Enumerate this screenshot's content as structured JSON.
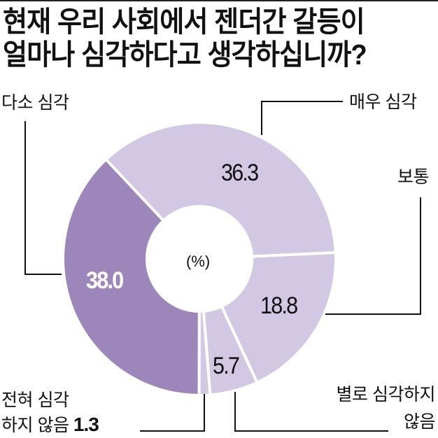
{
  "title": {
    "line1": "현재 우리 사회에서 젠더간 갈등이",
    "line2": "얼마나 심각하다고 생각하십니까?"
  },
  "colors": {
    "dark_segment": "#9d86b9",
    "light_segment": "#d3c8e4",
    "separator": "#ffffff",
    "rule": "#222222"
  },
  "labels": {
    "very_serious": "매우 심각",
    "normal": "보통",
    "somewhat_serious": "다소 심각",
    "not_very_serious_line1": "별로 심각하지",
    "not_very_serious_line2": "않음",
    "not_at_all_line1": "전혀 심각",
    "not_at_all_line2": "하지 않음",
    "not_at_all_value": "1.3",
    "unit": "(%)"
  },
  "values": {
    "very_serious": "36.3",
    "normal": "18.8",
    "not_very_serious": "5.7",
    "somewhat_serious": "38.0"
  },
  "chart_data": {
    "type": "pie",
    "subtype": "donut",
    "title": "현재 우리 사회에서 젠더간 갈등이 얼마나 심각하다고 생각하십니까?",
    "unit": "%",
    "categories": [
      "매우 심각",
      "보통",
      "별로 심각하지 않음",
      "전혀 심각하지 않음",
      "다소 심각"
    ],
    "values": [
      36.3,
      18.8,
      5.7,
      1.3,
      38.0
    ],
    "segment_colors": [
      "#d3c8e4",
      "#d3c8e4",
      "#d3c8e4",
      "#d3c8e4",
      "#9d86b9"
    ],
    "start_angle_deg": 316.8,
    "direction": "clockwise",
    "center": [
      285,
      370
    ],
    "outer_radius": 193,
    "inner_radius": 77,
    "legend": "none (direct labels with leader lines)"
  }
}
